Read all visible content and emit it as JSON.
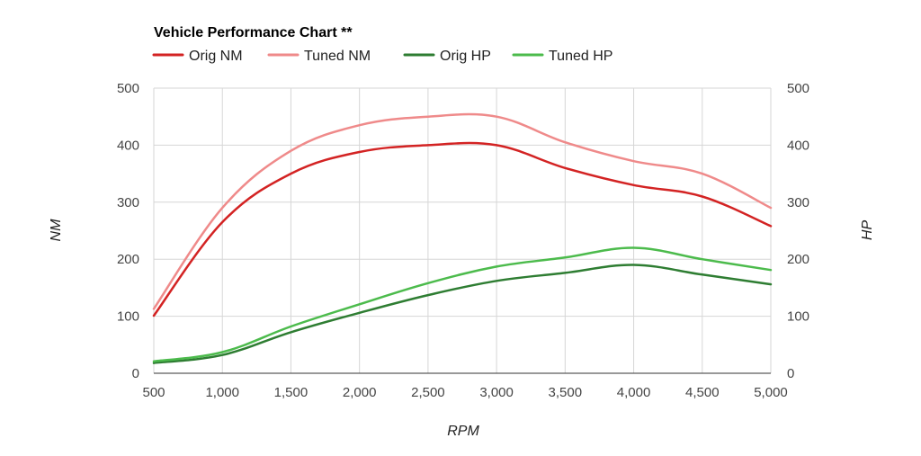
{
  "chart_data": {
    "type": "line",
    "title": "Vehicle Performance Chart **",
    "xlabel": "RPM",
    "ylabel_left": "NM",
    "ylabel_right": "HP",
    "x": [
      500,
      1000,
      1500,
      2000,
      2500,
      3000,
      3500,
      4000,
      4500,
      5000
    ],
    "x_ticks": [
      "500",
      "1,000",
      "1,500",
      "2,000",
      "2,500",
      "3,000",
      "3,500",
      "4,000",
      "4,500",
      "5,000"
    ],
    "xlim": [
      500,
      5000
    ],
    "y_ticks_left": [
      "0",
      "100",
      "200",
      "300",
      "400",
      "500"
    ],
    "y_ticks_right": [
      "0",
      "100",
      "200",
      "300",
      "400",
      "500"
    ],
    "ylim": [
      0,
      500
    ],
    "grid": true,
    "legend_position": "top-left",
    "series": [
      {
        "name": "Orig NM",
        "axis": "left",
        "color": "#d32323",
        "values": [
          101,
          265,
          350,
          388,
          400,
          400,
          360,
          330,
          310,
          258
        ]
      },
      {
        "name": "Tuned NM",
        "axis": "left",
        "color": "#ef8a8a",
        "values": [
          113,
          290,
          390,
          435,
          450,
          450,
          405,
          372,
          350,
          290
        ]
      },
      {
        "name": "Orig HP",
        "axis": "right",
        "color": "#2e7d32",
        "values": [
          18,
          32,
          72,
          106,
          137,
          162,
          176,
          190,
          173,
          156
        ]
      },
      {
        "name": "Tuned HP",
        "axis": "right",
        "color": "#4cbb4c",
        "values": [
          21,
          37,
          82,
          121,
          158,
          187,
          203,
          220,
          200,
          181
        ]
      }
    ]
  }
}
